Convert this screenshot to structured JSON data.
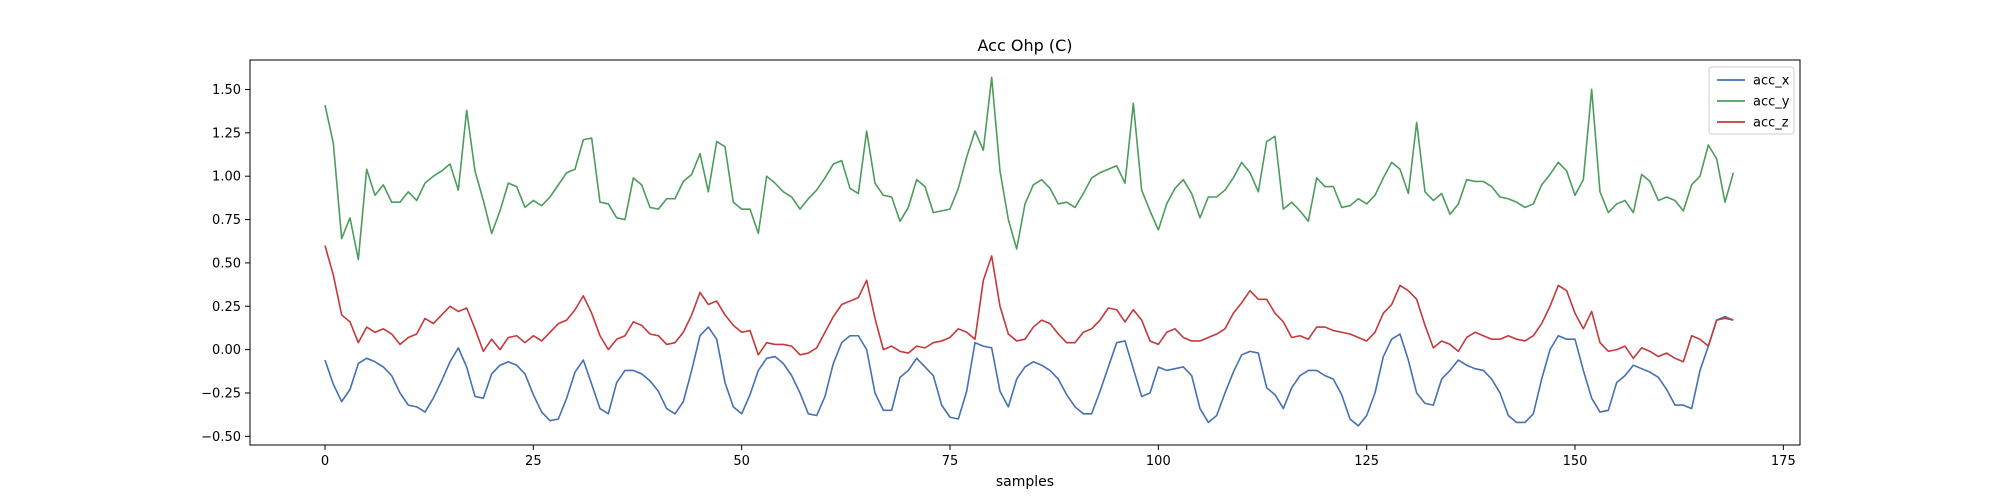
{
  "chart_data": {
    "type": "line",
    "title": "Acc Ohp (C)",
    "xlabel": "samples",
    "ylabel": "",
    "xlim": [
      -9,
      177
    ],
    "ylim": [
      -0.55,
      1.67
    ],
    "xticks": [
      0,
      25,
      50,
      75,
      100,
      125,
      150,
      175
    ],
    "xtick_labels": [
      "0",
      "25",
      "50",
      "75",
      "100",
      "125",
      "150",
      "175"
    ],
    "yticks": [
      -0.5,
      -0.25,
      0.0,
      0.25,
      0.5,
      0.75,
      1.0,
      1.25,
      1.5
    ],
    "ytick_labels": [
      "−0.50",
      "−0.25",
      "0.00",
      "0.25",
      "0.50",
      "0.75",
      "1.00",
      "1.25",
      "1.50"
    ],
    "grid": false,
    "legend_position": "top-right",
    "series": [
      {
        "name": "acc_x",
        "color": "#4470b4",
        "values": [
          -0.06,
          -0.2,
          -0.3,
          -0.23,
          -0.08,
          -0.05,
          -0.07,
          -0.1,
          -0.15,
          -0.25,
          -0.32,
          -0.33,
          -0.36,
          -0.28,
          -0.18,
          -0.07,
          0.01,
          -0.1,
          -0.27,
          -0.28,
          -0.14,
          -0.09,
          -0.07,
          -0.09,
          -0.14,
          -0.26,
          -0.36,
          -0.41,
          -0.4,
          -0.28,
          -0.13,
          -0.06,
          -0.2,
          -0.34,
          -0.37,
          -0.19,
          -0.12,
          -0.12,
          -0.14,
          -0.18,
          -0.24,
          -0.34,
          -0.37,
          -0.3,
          -0.12,
          0.08,
          0.13,
          0.06,
          -0.19,
          -0.33,
          -0.37,
          -0.26,
          -0.12,
          -0.05,
          -0.04,
          -0.08,
          -0.15,
          -0.25,
          -0.37,
          -0.38,
          -0.27,
          -0.08,
          0.04,
          0.08,
          0.08,
          0.0,
          -0.25,
          -0.35,
          -0.35,
          -0.16,
          -0.12,
          -0.05,
          -0.1,
          -0.15,
          -0.32,
          -0.39,
          -0.4,
          -0.24,
          0.04,
          0.02,
          0.01,
          -0.24,
          -0.33,
          -0.17,
          -0.1,
          -0.07,
          -0.09,
          -0.12,
          -0.17,
          -0.26,
          -0.33,
          -0.37,
          -0.37,
          -0.24,
          -0.1,
          0.04,
          0.05,
          -0.11,
          -0.27,
          -0.25,
          -0.1,
          -0.12,
          -0.11,
          -0.1,
          -0.15,
          -0.34,
          -0.42,
          -0.38,
          -0.25,
          -0.13,
          -0.03,
          -0.01,
          -0.02,
          -0.22,
          -0.26,
          -0.34,
          -0.22,
          -0.15,
          -0.12,
          -0.12,
          -0.15,
          -0.17,
          -0.26,
          -0.4,
          -0.44,
          -0.38,
          -0.25,
          -0.04,
          0.06,
          0.09,
          -0.06,
          -0.25,
          -0.31,
          -0.32,
          -0.17,
          -0.12,
          -0.06,
          -0.09,
          -0.11,
          -0.12,
          -0.17,
          -0.25,
          -0.38,
          -0.42,
          -0.42,
          -0.37,
          -0.17,
          0.0,
          0.08,
          0.06,
          0.06,
          -0.12,
          -0.28,
          -0.36,
          -0.35,
          -0.19,
          -0.15,
          -0.09,
          -0.11,
          -0.13,
          -0.16,
          -0.23,
          -0.32,
          -0.32,
          -0.34,
          -0.12,
          0.02,
          0.17,
          0.19,
          0.17
        ]
      },
      {
        "name": "acc_y",
        "color": "#4c9c5c",
        "values": [
          1.41,
          1.19,
          0.64,
          0.76,
          0.52,
          1.04,
          0.89,
          0.95,
          0.85,
          0.85,
          0.91,
          0.86,
          0.96,
          1.0,
          1.03,
          1.07,
          0.92,
          1.38,
          1.03,
          0.86,
          0.67,
          0.8,
          0.96,
          0.94,
          0.82,
          0.86,
          0.83,
          0.88,
          0.95,
          1.02,
          1.04,
          1.21,
          1.22,
          0.85,
          0.84,
          0.76,
          0.75,
          0.99,
          0.95,
          0.82,
          0.81,
          0.87,
          0.87,
          0.97,
          1.01,
          1.13,
          0.91,
          1.2,
          1.17,
          0.85,
          0.81,
          0.81,
          0.67,
          1.0,
          0.96,
          0.91,
          0.88,
          0.81,
          0.87,
          0.92,
          0.99,
          1.07,
          1.09,
          0.93,
          0.9,
          1.26,
          0.96,
          0.89,
          0.88,
          0.74,
          0.82,
          0.98,
          0.94,
          0.79,
          0.8,
          0.81,
          0.93,
          1.11,
          1.26,
          1.15,
          1.57,
          1.03,
          0.75,
          0.58,
          0.84,
          0.95,
          0.98,
          0.93,
          0.84,
          0.85,
          0.82,
          0.9,
          0.99,
          1.02,
          1.04,
          1.06,
          0.96,
          1.42,
          0.92,
          0.8,
          0.69,
          0.84,
          0.93,
          0.98,
          0.9,
          0.76,
          0.88,
          0.88,
          0.92,
          0.99,
          1.08,
          1.02,
          0.91,
          1.2,
          1.23,
          0.81,
          0.85,
          0.8,
          0.74,
          0.99,
          0.94,
          0.94,
          0.82,
          0.83,
          0.87,
          0.84,
          0.89,
          0.99,
          1.08,
          1.04,
          0.9,
          1.31,
          0.91,
          0.86,
          0.9,
          0.78,
          0.84,
          0.98,
          0.97,
          0.97,
          0.94,
          0.88,
          0.87,
          0.85,
          0.82,
          0.84,
          0.95,
          1.01,
          1.08,
          1.03,
          0.89,
          0.98,
          1.5,
          0.91,
          0.79,
          0.84,
          0.86,
          0.79,
          1.01,
          0.97,
          0.86,
          0.88,
          0.86,
          0.8,
          0.95,
          1.0,
          1.18,
          1.1,
          0.85,
          1.02
        ]
      },
      {
        "name": "acc_z",
        "color": "#c4393a",
        "values": [
          0.6,
          0.43,
          0.2,
          0.16,
          0.04,
          0.13,
          0.1,
          0.12,
          0.09,
          0.03,
          0.07,
          0.09,
          0.18,
          0.15,
          0.2,
          0.25,
          0.22,
          0.24,
          0.12,
          -0.01,
          0.06,
          0.0,
          0.07,
          0.08,
          0.04,
          0.08,
          0.05,
          0.1,
          0.15,
          0.17,
          0.23,
          0.31,
          0.21,
          0.08,
          0.0,
          0.06,
          0.08,
          0.16,
          0.14,
          0.09,
          0.08,
          0.03,
          0.04,
          0.1,
          0.2,
          0.33,
          0.26,
          0.28,
          0.2,
          0.14,
          0.1,
          0.11,
          -0.03,
          0.04,
          0.03,
          0.03,
          0.02,
          -0.03,
          -0.02,
          0.01,
          0.1,
          0.19,
          0.26,
          0.28,
          0.3,
          0.4,
          0.18,
          0.0,
          0.02,
          -0.01,
          -0.02,
          0.02,
          0.01,
          0.04,
          0.05,
          0.07,
          0.12,
          0.1,
          0.06,
          0.4,
          0.54,
          0.25,
          0.09,
          0.05,
          0.06,
          0.13,
          0.17,
          0.15,
          0.09,
          0.04,
          0.04,
          0.1,
          0.12,
          0.17,
          0.24,
          0.23,
          0.16,
          0.23,
          0.17,
          0.05,
          0.03,
          0.1,
          0.12,
          0.07,
          0.05,
          0.05,
          0.07,
          0.09,
          0.12,
          0.21,
          0.27,
          0.34,
          0.29,
          0.29,
          0.21,
          0.16,
          0.07,
          0.08,
          0.06,
          0.13,
          0.13,
          0.11,
          0.1,
          0.09,
          0.07,
          0.05,
          0.1,
          0.21,
          0.26,
          0.37,
          0.34,
          0.29,
          0.14,
          0.01,
          0.05,
          0.03,
          -0.01,
          0.07,
          0.1,
          0.08,
          0.06,
          0.06,
          0.08,
          0.06,
          0.05,
          0.08,
          0.15,
          0.25,
          0.37,
          0.34,
          0.21,
          0.12,
          0.22,
          0.04,
          -0.01,
          0.0,
          0.02,
          -0.05,
          0.01,
          -0.01,
          -0.04,
          -0.02,
          -0.05,
          -0.07,
          0.08,
          0.06,
          0.02,
          0.17,
          0.18,
          0.17
        ]
      }
    ]
  }
}
